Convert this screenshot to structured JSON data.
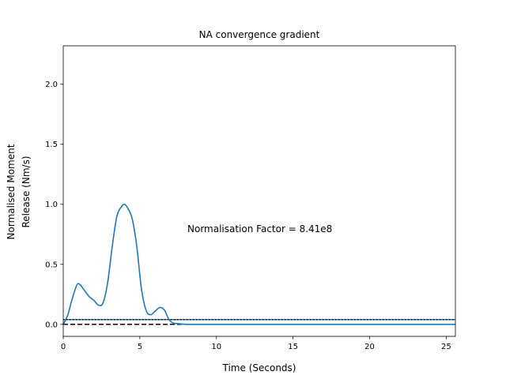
{
  "chart_data": {
    "type": "line",
    "title": "NA convergence gradient",
    "xlabel": "Time (Seconds)",
    "ylabel_lines": [
      "Normalised Moment",
      "Release (Nm/s)"
    ],
    "xlim": [
      0,
      25.6
    ],
    "ylim": [
      -0.1,
      2.32
    ],
    "xticks": [
      0,
      5,
      10,
      15,
      20,
      25
    ],
    "yticks": [
      0.0,
      0.5,
      1.0,
      1.5,
      2.0
    ],
    "ytick_labels": [
      "0.0",
      "0.5",
      "1.0",
      "1.5",
      "2.0"
    ],
    "grid": false,
    "series_color": "#1f77b4",
    "series": [
      {
        "x": [
          0,
          0.3,
          0.6,
          0.9,
          1.1,
          1.4,
          1.7,
          2.0,
          2.3,
          2.6,
          2.9,
          3.2,
          3.5,
          3.8,
          4.0,
          4.2,
          4.5,
          4.8,
          5.1,
          5.4,
          5.7,
          6.0,
          6.3,
          6.6,
          6.9,
          7.2,
          7.6,
          8.0,
          9.0,
          10.0,
          12.0,
          15.0,
          18.0,
          21.0,
          24.0,
          25.6
        ],
        "y": [
          0.0,
          0.08,
          0.22,
          0.33,
          0.33,
          0.28,
          0.23,
          0.2,
          0.16,
          0.18,
          0.35,
          0.65,
          0.9,
          0.98,
          1.0,
          0.97,
          0.88,
          0.65,
          0.3,
          0.12,
          0.08,
          0.11,
          0.14,
          0.12,
          0.04,
          0.01,
          0.005,
          0.0,
          0.0,
          0.0,
          0.0,
          0.0,
          0.0,
          0.0,
          0.0,
          0.0
        ]
      }
    ],
    "reference_lines": [
      {
        "style": "solid",
        "color": "#1f77b4",
        "y": 0.04
      },
      {
        "style": "dotted",
        "color": "#000000",
        "y": 0.04
      },
      {
        "style": "dashed",
        "color": "#000000",
        "y": 0.0
      }
    ],
    "annotation": {
      "text": "Normalisation Factor = 8.41e8",
      "x": 8.0,
      "y": 0.8
    }
  }
}
